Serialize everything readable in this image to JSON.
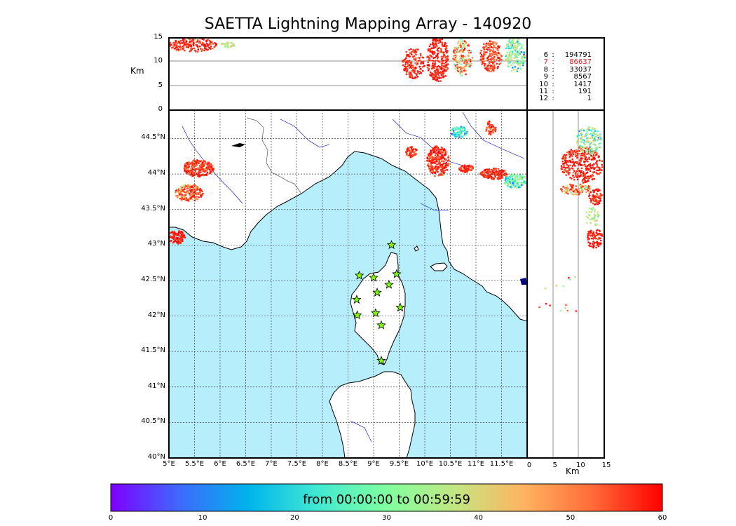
{
  "title": "SAETTA Lightning Mapping Array - 140920",
  "top_panel": {
    "ylabel": "Km",
    "yticks": [
      "0",
      "5",
      "10",
      "15"
    ]
  },
  "right_panel": {
    "xlabel": "Km",
    "xticks": [
      "0",
      "5",
      "10",
      "15"
    ]
  },
  "map": {
    "lon_ticks": [
      "5°E",
      "5.5°E",
      "6°E",
      "6.5°E",
      "7°E",
      "7.5°E",
      "8°E",
      "8.5°E",
      "9°E",
      "9.5°E",
      "10°E",
      "10.5°E",
      "11°E",
      "11.5°E"
    ],
    "lat_ticks": [
      "40°N",
      "40.5°N",
      "41°N",
      "41.5°N",
      "42°N",
      "42.5°N",
      "43°N",
      "43.5°N",
      "44°N",
      "44.5°N"
    ],
    "stations": [
      {
        "lon": 9.35,
        "lat": 43.0
      },
      {
        "lon": 8.72,
        "lat": 42.57
      },
      {
        "lon": 9.0,
        "lat": 42.54
      },
      {
        "lon": 9.45,
        "lat": 42.59
      },
      {
        "lon": 9.3,
        "lat": 42.44
      },
      {
        "lon": 9.07,
        "lat": 42.33
      },
      {
        "lon": 8.67,
        "lat": 42.23
      },
      {
        "lon": 9.52,
        "lat": 42.12
      },
      {
        "lon": 9.04,
        "lat": 42.04
      },
      {
        "lon": 8.68,
        "lat": 42.01
      },
      {
        "lon": 9.15,
        "lat": 41.87
      },
      {
        "lon": 9.15,
        "lat": 41.37
      }
    ]
  },
  "counts": [
    {
      "level": "6",
      "sep": ":",
      "value": "194791",
      "color": "#000000"
    },
    {
      "level": "7",
      "sep": ":",
      "value": "86637",
      "color": "#e31a1c"
    },
    {
      "level": "8",
      "sep": ":",
      "value": "33037",
      "color": "#000000"
    },
    {
      "level": "9",
      "sep": ":",
      "value": "8567",
      "color": "#000000"
    },
    {
      "level": "10",
      "sep": ":",
      "value": "1417",
      "color": "#000000"
    },
    {
      "level": "11",
      "sep": ":",
      "value": "191",
      "color": "#000000"
    },
    {
      "level": "12",
      "sep": ":",
      "value": "1",
      "color": "#000000"
    }
  ],
  "colorbar": {
    "label": "from 00:00:00 to 00:59:59",
    "ticks": [
      "0",
      "10",
      "20",
      "30",
      "40",
      "50",
      "60"
    ],
    "colors": [
      "#7f00ff",
      "#3d6afe",
      "#00b4eb",
      "#41e9d2",
      "#80ff9f",
      "#c3e682",
      "#ffb360",
      "#ff6a37",
      "#ff0000"
    ]
  },
  "colors": {
    "sea": "#b7eefc",
    "land": "#ffffff",
    "river": "#0000cc",
    "station": "#7fff00"
  }
}
